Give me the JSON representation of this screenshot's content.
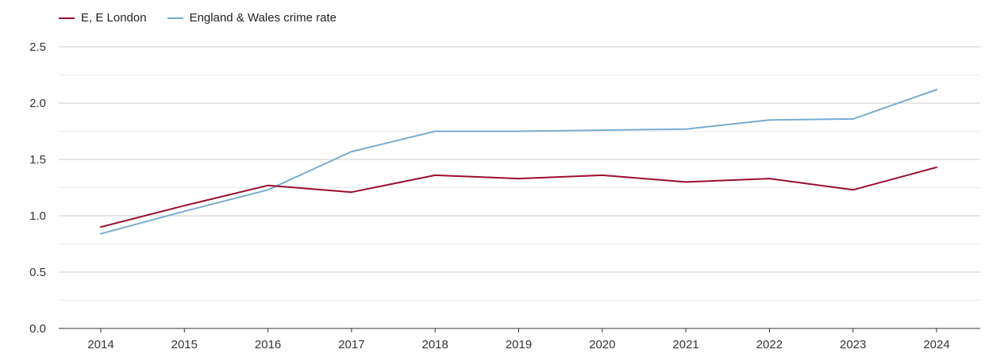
{
  "colors": {
    "london": "#9b0d2e",
    "england_wales": "#78acd1",
    "grid_major": "#cccccc",
    "grid_minor": "#ececec",
    "axis": "#333333"
  },
  "chart_data": {
    "type": "line",
    "title": "",
    "xlabel": "",
    "ylabel": "",
    "x": [
      "2014",
      "2015",
      "2016",
      "2017",
      "2018",
      "2019",
      "2020",
      "2021",
      "2022",
      "2023",
      "2024"
    ],
    "ylim": [
      0,
      2.5
    ],
    "yticks": [
      "0.0",
      "0.5",
      "1.0",
      "1.5",
      "2.0",
      "2.5"
    ],
    "ytick_values": [
      0,
      0.5,
      1.0,
      1.5,
      2.0,
      2.5
    ],
    "legend_position": "top-left",
    "series": [
      {
        "name": "E, E London",
        "color": "#9b0d2e",
        "values": [
          0.9,
          1.09,
          1.27,
          1.21,
          1.36,
          1.33,
          1.36,
          1.3,
          1.33,
          1.23,
          1.43
        ]
      },
      {
        "name": "England & Wales crime rate",
        "color": "#78acd1",
        "values": [
          0.84,
          1.04,
          1.23,
          1.57,
          1.75,
          1.75,
          1.76,
          1.77,
          1.85,
          1.86,
          2.12
        ]
      }
    ]
  }
}
